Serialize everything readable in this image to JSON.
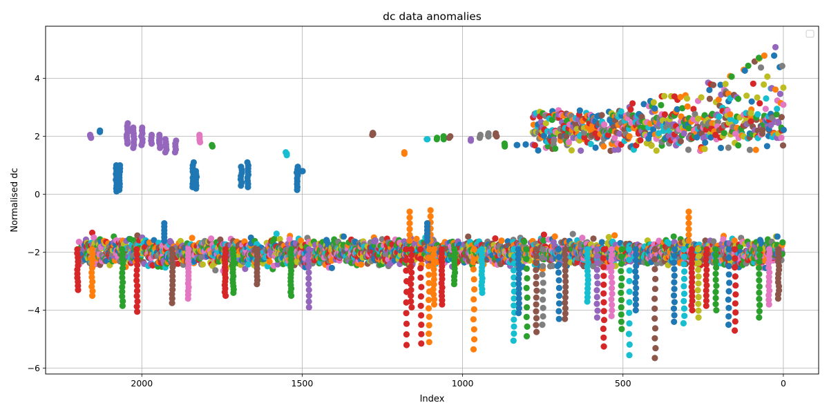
{
  "chart_data": {
    "type": "scatter",
    "title": "dc data anomalies",
    "xlabel": "Index",
    "ylabel": "Normalised dc",
    "xlim": [
      2300,
      -110
    ],
    "ylim": [
      -6.2,
      5.8
    ],
    "x_inverted": true,
    "xticks": [
      2000,
      1500,
      1000,
      500,
      0
    ],
    "yticks": [
      -6,
      -4,
      -2,
      0,
      2,
      4
    ],
    "grid": true,
    "legend": "top-right, empty",
    "colors": [
      "#1f77b4",
      "#ff7f0e",
      "#2ca02c",
      "#d62728",
      "#9467bd",
      "#8c564b",
      "#e377c2",
      "#7f7f7f",
      "#bcbd22",
      "#17becf"
    ],
    "base_band": {
      "x_range": [
        2195,
        0
      ],
      "center": -2.0,
      "spread": [
        -1.1,
        -3.0
      ],
      "note": "dense band of points from every series around y ≈ -2"
    },
    "clusters": [
      {
        "x": 2160,
        "y": [
          1.95,
          2.05
        ],
        "color": "#9467bd"
      },
      {
        "x": 2130,
        "y": [
          2.15,
          2.2
        ],
        "color": "#1f77b4"
      },
      {
        "x": 2080,
        "y": [
          0.1,
          1.0
        ],
        "color": "#1f77b4"
      },
      {
        "x": 2070,
        "y": [
          0.15,
          1.0
        ],
        "color": "#1f77b4"
      },
      {
        "x": 2045,
        "y": [
          1.75,
          2.45
        ],
        "color": "#9467bd"
      },
      {
        "x": 2025,
        "y": [
          1.6,
          2.3
        ],
        "color": "#9467bd"
      },
      {
        "x": 2000,
        "y": [
          1.7,
          2.3
        ],
        "color": "#9467bd"
      },
      {
        "x": 1970,
        "y": [
          1.75,
          2.05
        ],
        "color": "#9467bd"
      },
      {
        "x": 1945,
        "y": [
          1.6,
          2.05
        ],
        "color": "#9467bd"
      },
      {
        "x": 1925,
        "y": [
          1.45,
          1.9
        ],
        "color": "#9467bd"
      },
      {
        "x": 1895,
        "y": [
          1.45,
          1.85
        ],
        "color": "#9467bd"
      },
      {
        "x": 1840,
        "y": [
          0.25,
          1.1
        ],
        "color": "#1f77b4"
      },
      {
        "x": 1830,
        "y": [
          0.2,
          0.8
        ],
        "color": "#1f77b4"
      },
      {
        "x": 1820,
        "y": [
          1.8,
          2.05
        ],
        "color": "#e377c2"
      },
      {
        "x": 1780,
        "y": [
          1.65,
          1.7
        ],
        "color": "#2ca02c"
      },
      {
        "x": 1690,
        "y": [
          0.3,
          0.95
        ],
        "color": "#1f77b4"
      },
      {
        "x": 1670,
        "y": [
          0.25,
          1.1
        ],
        "color": "#1f77b4"
      },
      {
        "x": 1550,
        "y": [
          1.35,
          1.45
        ],
        "color": "#17becf"
      },
      {
        "x": 1515,
        "y": [
          0.15,
          0.95
        ],
        "color": "#1f77b4"
      },
      {
        "x": 1500,
        "y": [
          0.8,
          0.8
        ],
        "color": "#1f77b4"
      },
      {
        "x": 1280,
        "y": [
          2.05,
          2.12
        ],
        "color": "#8c564b"
      },
      {
        "x": 1180,
        "y": [
          1.4,
          1.45
        ],
        "color": "#ff7f0e"
      },
      {
        "x": 1110,
        "y": [
          1.9,
          1.9
        ],
        "color": "#17becf"
      },
      {
        "x": 1080,
        "y": [
          1.9,
          1.95
        ],
        "color": "#2ca02c"
      },
      {
        "x": 1060,
        "y": [
          1.9,
          2.0
        ],
        "color": "#2ca02c"
      },
      {
        "x": 1040,
        "y": [
          1.95,
          2.0
        ],
        "color": "#8c564b"
      },
      {
        "x": 975,
        "y": [
          1.85,
          1.9
        ],
        "color": "#9467bd"
      },
      {
        "x": 945,
        "y": [
          1.95,
          2.05
        ],
        "color": "#7f7f7f"
      },
      {
        "x": 920,
        "y": [
          2.0,
          2.1
        ],
        "color": "#7f7f7f"
      },
      {
        "x": 895,
        "y": [
          2.0,
          2.1
        ],
        "color": "#8c564b"
      },
      {
        "x": 870,
        "y": [
          1.65,
          1.75
        ],
        "color": "#2ca02c"
      },
      {
        "x": 830,
        "y": [
          1.7,
          1.7
        ],
        "color": "#1f77b4"
      },
      {
        "x": 805,
        "y": [
          1.72,
          1.72
        ],
        "color": "#1f77b4"
      }
    ],
    "upper_band": {
      "x_range": [
        780,
        0
      ],
      "y_low": 1.5,
      "y_high_start": 2.9,
      "y_high_end": 5.3,
      "note": "dense multi-colored points between y ≈ 1.5 and ≈ 3, rising to ≈ 5.3 near index 0"
    },
    "dips": [
      {
        "x": 2200,
        "y_min": -3.3,
        "color": "#d62728"
      },
      {
        "x": 2155,
        "y_min": -3.5,
        "color": "#ff7f0e"
      },
      {
        "x": 2060,
        "y_min": -3.85,
        "color": "#2ca02c"
      },
      {
        "x": 2015,
        "y_min": -4.05,
        "color": "#d62728"
      },
      {
        "x": 1905,
        "y_min": -3.75,
        "color": "#8c564b"
      },
      {
        "x": 1855,
        "y_min": -3.6,
        "color": "#e377c2"
      },
      {
        "x": 1740,
        "y_min": -3.5,
        "color": "#d62728"
      },
      {
        "x": 1715,
        "y_min": -3.4,
        "color": "#2ca02c"
      },
      {
        "x": 1640,
        "y_min": -3.1,
        "color": "#8c564b"
      },
      {
        "x": 1535,
        "y_min": -3.5,
        "color": "#2ca02c"
      },
      {
        "x": 1480,
        "y_min": -3.9,
        "color": "#9467bd"
      },
      {
        "x": 1175,
        "y_min": -5.2,
        "color": "#d62728"
      },
      {
        "x": 1160,
        "y_min": -3.9,
        "color": "#d62728"
      },
      {
        "x": 1130,
        "y_min": -5.15,
        "color": "#d62728"
      },
      {
        "x": 1105,
        "y_min": -5.1,
        "color": "#ff7f0e"
      },
      {
        "x": 1090,
        "y_min": -3.8,
        "color": "#ff7f0e"
      },
      {
        "x": 1065,
        "y_min": -3.8,
        "color": "#d62728"
      },
      {
        "x": 1025,
        "y_min": -3.1,
        "color": "#2ca02c"
      },
      {
        "x": 965,
        "y_min": -5.35,
        "color": "#ff7f0e"
      },
      {
        "x": 940,
        "y_min": -3.4,
        "color": "#17becf"
      },
      {
        "x": 840,
        "y_min": -5.05,
        "color": "#17becf"
      },
      {
        "x": 825,
        "y_min": -4.1,
        "color": "#1f77b4"
      },
      {
        "x": 800,
        "y_min": -4.9,
        "color": "#2ca02c"
      },
      {
        "x": 770,
        "y_min": -4.75,
        "color": "#8c564b"
      },
      {
        "x": 750,
        "y_min": -4.5,
        "color": "#7f7f7f"
      },
      {
        "x": 700,
        "y_min": -4.3,
        "color": "#1f77b4"
      },
      {
        "x": 680,
        "y_min": -4.3,
        "color": "#8c564b"
      },
      {
        "x": 610,
        "y_min": -3.7,
        "color": "#17becf"
      },
      {
        "x": 580,
        "y_min": -4.25,
        "color": "#9467bd"
      },
      {
        "x": 560,
        "y_min": -5.25,
        "color": "#d62728"
      },
      {
        "x": 535,
        "y_min": -4.2,
        "color": "#e377c2"
      },
      {
        "x": 505,
        "y_min": -4.65,
        "color": "#2ca02c"
      },
      {
        "x": 480,
        "y_min": -5.55,
        "color": "#17becf"
      },
      {
        "x": 460,
        "y_min": -4.0,
        "color": "#1f77b4"
      },
      {
        "x": 400,
        "y_min": -5.65,
        "color": "#8c564b"
      },
      {
        "x": 340,
        "y_min": -4.4,
        "color": "#1f77b4"
      },
      {
        "x": 310,
        "y_min": -4.45,
        "color": "#17becf"
      },
      {
        "x": 285,
        "y_min": -4.0,
        "color": "#d62728"
      },
      {
        "x": 265,
        "y_min": -4.25,
        "color": "#bcbd22"
      },
      {
        "x": 240,
        "y_min": -3.85,
        "color": "#d62728"
      },
      {
        "x": 210,
        "y_min": -4.0,
        "color": "#2ca02c"
      },
      {
        "x": 170,
        "y_min": -4.5,
        "color": "#1f77b4"
      },
      {
        "x": 150,
        "y_min": -4.7,
        "color": "#d62728"
      },
      {
        "x": 75,
        "y_min": -4.25,
        "color": "#2ca02c"
      },
      {
        "x": 45,
        "y_min": -3.8,
        "color": "#e377c2"
      },
      {
        "x": 15,
        "y_min": -3.6,
        "color": "#8c564b"
      }
    ],
    "spikes_up": [
      {
        "x": 1165,
        "y": -0.6,
        "color": "#ff7f0e"
      },
      {
        "x": 1100,
        "y": -0.55,
        "color": "#ff7f0e"
      },
      {
        "x": 1110,
        "y": -1.0,
        "color": "#1f77b4"
      },
      {
        "x": 1930,
        "y": -1.0,
        "color": "#1f77b4"
      },
      {
        "x": 295,
        "y": -0.6,
        "color": "#ff7f0e"
      }
    ]
  }
}
